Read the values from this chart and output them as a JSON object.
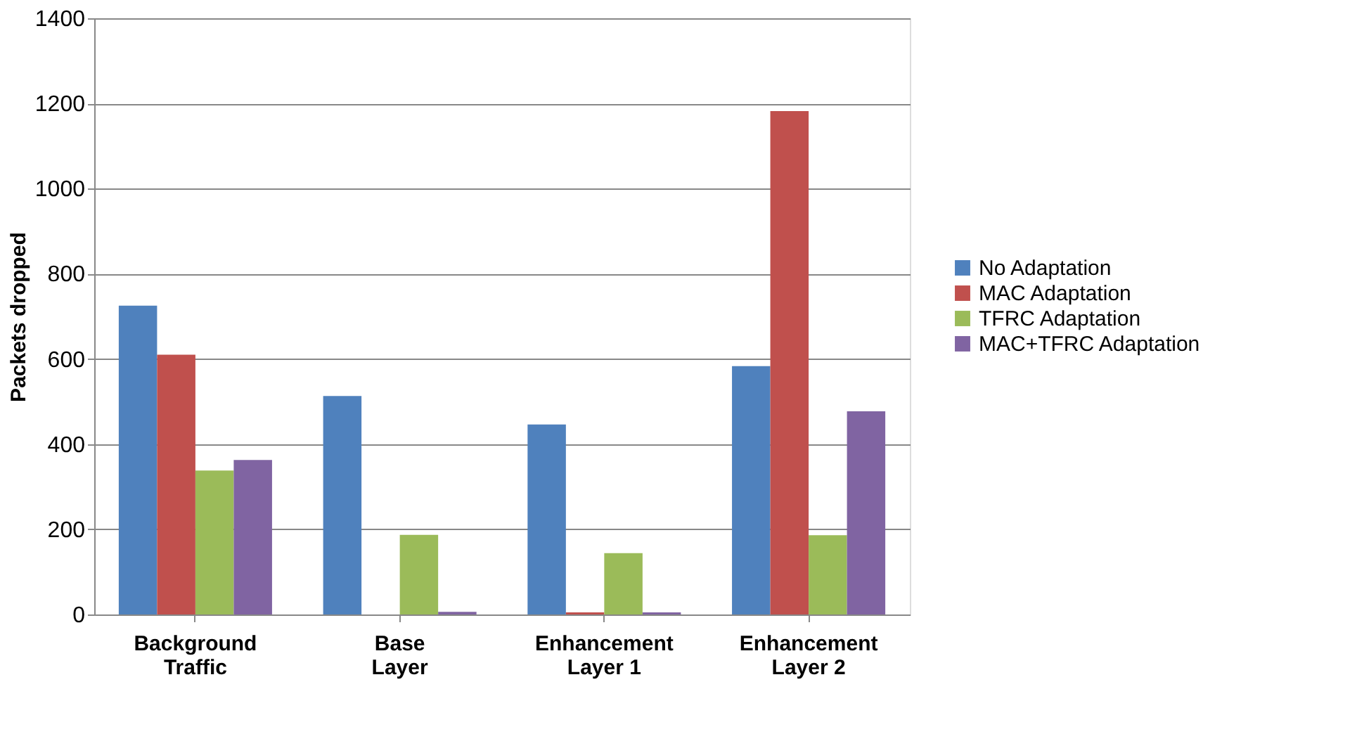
{
  "chart_data": {
    "type": "bar",
    "ylabel": "Packets dropped",
    "categories": [
      "Background Traffic",
      "Base Layer",
      "Enhancement Layer 1",
      "Enhancement Layer 2"
    ],
    "series": [
      {
        "name": "No Adaptation",
        "color": "#4f81bd",
        "values": [
          725,
          513,
          446,
          583
        ]
      },
      {
        "name": "MAC Adaptation",
        "color": "#c0504d",
        "values": [
          610,
          0,
          5,
          1182
        ]
      },
      {
        "name": "TFRC Adaptation",
        "color": "#9bbb59",
        "values": [
          338,
          187,
          144,
          186
        ]
      },
      {
        "name": "MAC+TFRC Adaptation",
        "color": "#8064a2",
        "values": [
          363,
          6,
          5,
          477
        ]
      }
    ],
    "ylim": [
      0,
      1400
    ],
    "yticks": [
      0,
      200,
      400,
      600,
      800,
      1000,
      1200,
      1400
    ],
    "grid": "y",
    "legend": "right"
  }
}
